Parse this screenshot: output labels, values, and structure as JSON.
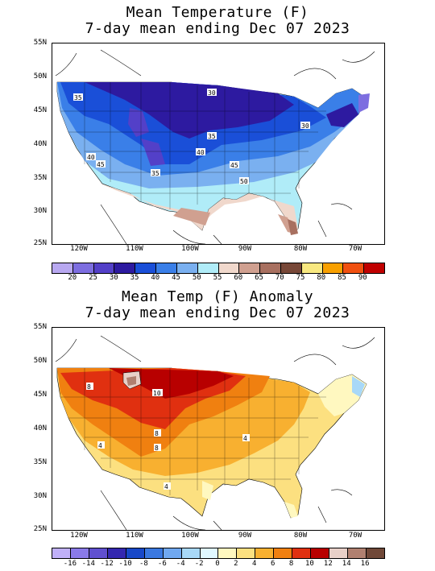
{
  "top": {
    "title_line1": "Mean Temperature (F)",
    "title_line2": "7-day mean ending Dec 07 2023",
    "lat_ticks": [
      "55N",
      "50N",
      "45N",
      "40N",
      "35N",
      "30N",
      "25N"
    ],
    "lon_ticks": [
      "120W",
      "110W",
      "100W",
      "90W",
      "80W",
      "70W"
    ],
    "contour_labels": [
      "35",
      "30",
      "35",
      "40",
      "45",
      "35",
      "40",
      "45",
      "50",
      "30"
    ],
    "legend_labels": [
      "20",
      "25",
      "30",
      "35",
      "40",
      "45",
      "50",
      "55",
      "60",
      "65",
      "70",
      "75",
      "80",
      "85",
      "90"
    ],
    "legend_colors": [
      "#b8a8f0",
      "#7d6ee0",
      "#5340c8",
      "#2d1aa0",
      "#1a4fd8",
      "#3a7fe8",
      "#7ab0f0",
      "#b0ecf8",
      "#f0d8cc",
      "#d0a090",
      "#a87060",
      "#784838",
      "#f8e880",
      "#f8a000",
      "#f05010",
      "#c00000"
    ]
  },
  "bottom": {
    "title_line1": "Mean Temp (F) Anomaly",
    "title_line2": "7-day mean ending Dec 07 2023",
    "lat_ticks": [
      "55N",
      "50N",
      "45N",
      "40N",
      "35N",
      "30N",
      "25N"
    ],
    "lon_ticks": [
      "120W",
      "110W",
      "100W",
      "90W",
      "80W",
      "70W"
    ],
    "contour_labels": [
      "8",
      "10",
      "8",
      "4",
      "8",
      "4",
      "4"
    ],
    "legend_labels": [
      "-16",
      "-14",
      "-12",
      "-10",
      "-8",
      "-6",
      "-4",
      "-2",
      "0",
      "2",
      "4",
      "6",
      "8",
      "10",
      "12",
      "14",
      "16"
    ],
    "legend_colors": [
      "#c0b0f8",
      "#8a7ae8",
      "#6050d0",
      "#3428b0",
      "#1848c8",
      "#3a78e0",
      "#70a8f0",
      "#a8d8f8",
      "#e0f8ff",
      "#fff8c0",
      "#fce080",
      "#f8b030",
      "#f08010",
      "#e03010",
      "#b80000",
      "#e8d0c8",
      "#b08070",
      "#704838"
    ]
  }
}
